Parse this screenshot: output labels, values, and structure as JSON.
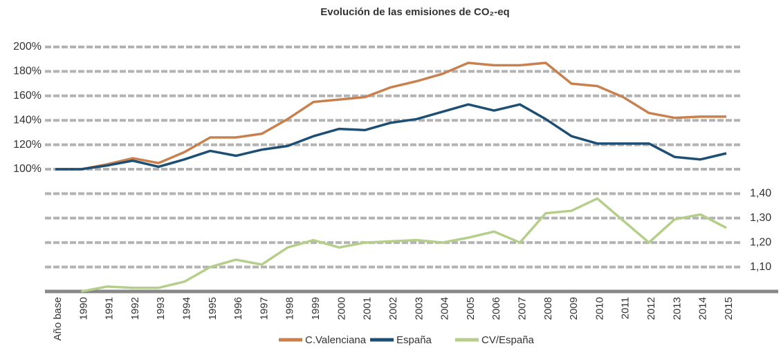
{
  "chart_data": {
    "type": "line",
    "title": "Evolución de las emisiones de CO₂-eq",
    "categories": [
      "Año base",
      "1990",
      "1991",
      "1992",
      "1993",
      "1994",
      "1995",
      "1996",
      "1997",
      "1998",
      "1999",
      "2000",
      "2001",
      "2002",
      "2003",
      "2004",
      "2005",
      "2006",
      "2007",
      "2008",
      "2009",
      "2010",
      "2011",
      "2012",
      "2013",
      "2014",
      "2015"
    ],
    "series": [
      {
        "name": "C.Valenciana",
        "color": "#c8804f",
        "values": [
          100,
          100,
          104,
          109,
          105,
          114,
          126,
          126,
          129,
          141,
          155,
          157,
          159,
          167,
          172,
          178,
          187,
          185,
          185,
          187,
          170,
          168,
          159,
          146,
          142,
          143,
          143
        ]
      },
      {
        "name": "España",
        "color": "#1d4e73",
        "values": [
          100,
          100,
          103,
          107,
          102,
          108,
          115,
          111,
          116,
          119,
          127,
          133,
          132,
          138,
          141,
          147,
          153,
          148,
          153,
          141,
          127,
          121,
          121,
          121,
          110,
          108,
          113
        ]
      },
      {
        "name": "CV/España",
        "color": "#b5cf8a",
        "axis": "y2",
        "values": [
          null,
          1.0,
          1.02,
          1.015,
          1.015,
          1.04,
          1.1,
          1.13,
          1.11,
          1.18,
          1.21,
          1.18,
          1.2,
          1.205,
          1.21,
          1.2,
          1.22,
          1.245,
          1.2,
          1.32,
          1.33,
          1.38,
          1.29,
          1.2,
          1.295,
          1.315,
          1.26
        ]
      }
    ],
    "ylim": [
      0,
      200
    ],
    "yticks": [
      {
        "value": 100,
        "label": "100%"
      },
      {
        "value": 120,
        "label": "120%"
      },
      {
        "value": 140,
        "label": "140%"
      },
      {
        "value": 160,
        "label": "160%"
      },
      {
        "value": 180,
        "label": "180%"
      },
      {
        "value": 200,
        "label": "200%"
      }
    ],
    "y2lim": [
      1.0,
      2.0
    ],
    "y2ticks": [
      {
        "value": 1.1,
        "label": "1,10"
      },
      {
        "value": 1.2,
        "label": "1,20"
      },
      {
        "value": 1.3,
        "label": "1,30"
      },
      {
        "value": 1.4,
        "label": "1,40"
      }
    ],
    "grid": true,
    "legend": "bottom"
  }
}
